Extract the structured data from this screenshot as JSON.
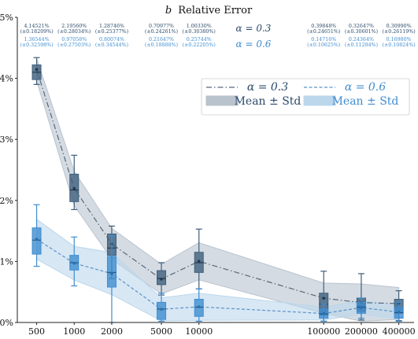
{
  "chart_data": {
    "type": "box",
    "title": "b Relative Error",
    "title_math": "b",
    "title_text": "Relative Error",
    "x": [
      "500",
      "1000",
      "2000",
      "5000",
      "10000",
      "100000",
      "200000",
      "400000"
    ],
    "x_scale": "log",
    "yticks": [
      "0%",
      "1%",
      "2%",
      "3%",
      "4%",
      "5%"
    ],
    "ylim": [
      0,
      5
    ],
    "grid": false,
    "legend_position": "top-right",
    "series_labels": [
      "α = 0.3",
      "α = 0.6"
    ],
    "series": [
      {
        "name": "α = 0.3",
        "line_style": "dash-dot",
        "line_color": "#56687a",
        "box_color": "#3f5f7d",
        "band_color": "#b9c3ce",
        "mean": [
          4.145,
          2.196,
          1.287,
          0.71,
          1.003,
          0.398,
          0.326,
          0.31
        ],
        "std": [
          0.182,
          0.28,
          0.254,
          0.243,
          0.304,
          0.247,
          0.306,
          0.262
        ],
        "box": {
          "whisker_low": [
            3.9,
            1.85,
            0.72,
            0.45,
            0.55,
            0.02,
            0.04,
            0.03
          ],
          "q1": [
            3.98,
            1.98,
            1.1,
            0.62,
            0.82,
            0.12,
            0.18,
            0.15
          ],
          "median": [
            4.1,
            2.17,
            1.22,
            0.72,
            0.98,
            0.3,
            0.27,
            0.25
          ],
          "q3": [
            4.22,
            2.43,
            1.45,
            0.85,
            1.15,
            0.48,
            0.4,
            0.38
          ],
          "whisker_high": [
            4.34,
            2.74,
            1.58,
            0.98,
            1.53,
            0.84,
            0.8,
            0.52
          ]
        },
        "annotations": [
          [
            "4.14521%",
            "(±0.18209%)"
          ],
          [
            "2.19560%",
            "(±0.28034%)"
          ],
          [
            "1.28746%",
            "(±0.25377%)"
          ],
          [
            "0.70977%",
            "(±0.24261%)"
          ],
          [
            "1.00330%",
            "(±0.30380%)"
          ],
          [
            "0.39848%",
            "(±0.24651%)"
          ],
          [
            "0.32647%",
            "(±0.30601%)"
          ],
          [
            "0.30990%",
            "(±0.26119%)"
          ]
        ]
      },
      {
        "name": "α = 0.6",
        "line_style": "dashed",
        "line_color": "#5a93c8",
        "box_color": "#3f8dd0",
        "band_color": "#bcd7ec",
        "mean": [
          1.365,
          0.971,
          0.801,
          0.216,
          0.257,
          0.147,
          0.244,
          0.17
        ],
        "std": [
          0.326,
          0.275,
          0.345,
          0.189,
          0.222,
          0.106,
          0.113,
          0.108
        ],
        "box": {
          "whisker_low": [
            0.92,
            0.6,
            0.0,
            0.02,
            0.02,
            0.02,
            0.07,
            0.02
          ],
          "q1": [
            1.12,
            0.86,
            0.58,
            0.05,
            0.1,
            0.07,
            0.15,
            0.07
          ],
          "median": [
            1.35,
            0.98,
            0.82,
            0.22,
            0.25,
            0.14,
            0.25,
            0.16
          ],
          "q3": [
            1.55,
            1.1,
            1.08,
            0.33,
            0.38,
            0.22,
            0.33,
            0.25
          ],
          "whisker_high": [
            1.93,
            1.4,
            1.42,
            0.48,
            0.55,
            0.3,
            0.4,
            0.33
          ]
        },
        "annotations": [
          [
            "1.36544%",
            "(±0.32598%)"
          ],
          [
            "0.97058%",
            "(±0.27503%)"
          ],
          [
            "0.80074%",
            "(±0.34544%)"
          ],
          [
            "0.21647%",
            "(±0.18888%)"
          ],
          [
            "0.25744%",
            "(±0.22205%)"
          ],
          [
            "0.14716%",
            "(±0.10625%)"
          ],
          [
            "0.24364%",
            "(±0.11284%)"
          ],
          [
            "0.16980%",
            "(±0.10824%)"
          ]
        ]
      }
    ],
    "legend": [
      {
        "label": "α = 0.3",
        "kind": "line",
        "series": 0
      },
      {
        "label": "α = 0.6",
        "kind": "line",
        "series": 1
      },
      {
        "label": "Mean ± Std",
        "kind": "band",
        "series": 0
      },
      {
        "label": "Mean ± Std",
        "kind": "band",
        "series": 1
      }
    ]
  }
}
